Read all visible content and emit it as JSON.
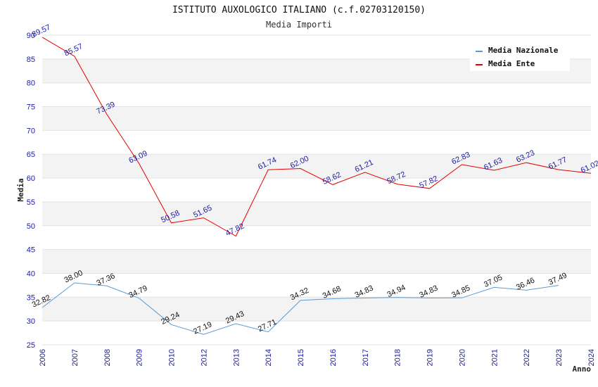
{
  "chart_data": {
    "type": "line",
    "title": "ISTITUTO AUXOLOGICO ITALIANO (c.f.02703120150)",
    "subtitle": "Media Importi",
    "xlabel": "Anno",
    "ylabel": "Media",
    "ylim": [
      25,
      90
    ],
    "yticks": [
      "25",
      "30",
      "35",
      "40",
      "45",
      "50",
      "55",
      "60",
      "65",
      "70",
      "75",
      "80",
      "85",
      "90"
    ],
    "categories": [
      "2006",
      "2007",
      "2008",
      "2009",
      "2010",
      "2012",
      "2013",
      "2014",
      "2015",
      "2016",
      "2017",
      "2018",
      "2019",
      "2020",
      "2021",
      "2022",
      "2023",
      "2024"
    ],
    "grid": "horizontal bands",
    "legend_position": "top-right",
    "series": [
      {
        "name": "Media Nazionale",
        "color": "#5b9bd5",
        "values": [
          32.82,
          38.0,
          37.36,
          34.79,
          29.24,
          27.19,
          29.43,
          27.71,
          34.32,
          34.68,
          34.83,
          34.94,
          34.83,
          34.85,
          37.05,
          36.46,
          37.49,
          null
        ],
        "labels": [
          "32.82",
          "38.00",
          "37.36",
          "34.79",
          "29.24",
          "27.19",
          "29.43",
          "27.71",
          "34.32",
          "34.68",
          "34.83",
          "34.94",
          "34.83",
          "34.85",
          "37.05",
          "36.46",
          "37.49",
          ""
        ]
      },
      {
        "name": "Media Ente",
        "color": "#e60000",
        "values": [
          89.57,
          85.57,
          73.39,
          63.09,
          50.58,
          51.65,
          47.82,
          61.74,
          62.0,
          58.62,
          61.21,
          58.72,
          57.82,
          62.83,
          61.63,
          63.23,
          61.77,
          61.02
        ],
        "labels": [
          "89.57",
          "85.57",
          "73.39",
          "63.09",
          "50.58",
          "51.65",
          "47.82",
          "61.74",
          "62.00",
          "58.62",
          "61.21",
          "58.72",
          "57.82",
          "62.83",
          "61.63",
          "63.23",
          "61.77",
          "61.02"
        ]
      }
    ]
  }
}
